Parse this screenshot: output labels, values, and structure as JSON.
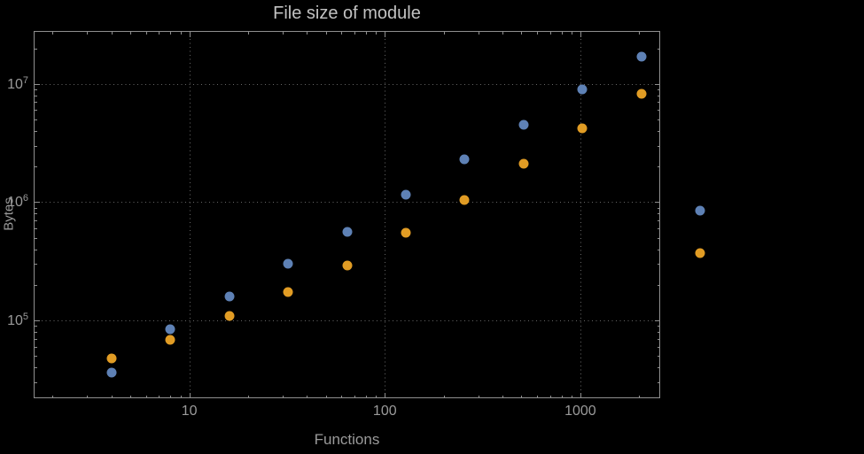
{
  "chart_data": {
    "type": "scatter",
    "title": "File size of module",
    "xlabel": "Functions",
    "ylabel": "Bytes",
    "x_scale": "log",
    "y_scale": "log",
    "grid": "dotted",
    "legend": "none",
    "xlim": [
      1.6,
      2560
    ],
    "ylim": [
      22000,
      28000000
    ],
    "x_ticks": [
      10,
      100,
      1000
    ],
    "x_tick_labels": [
      "10",
      "100",
      "1000"
    ],
    "y_ticks": [
      100000,
      1000000,
      10000000
    ],
    "y_tick_labels": [
      "10^5",
      "10^6",
      "10^7"
    ],
    "x": [
      4,
      8,
      16,
      32,
      64,
      128,
      256,
      512,
      1024,
      2048,
      4096
    ],
    "series": [
      {
        "name": "series-1",
        "color": "#5e81b5",
        "values": [
          36000,
          85000,
          160000,
          300000,
          560000,
          1150000,
          2300000,
          4500000,
          9000000,
          17000000,
          850000
        ]
      },
      {
        "name": "series-2",
        "color": "#e19c24",
        "values": [
          48000,
          68000,
          110000,
          175000,
          290000,
          550000,
          1050000,
          2100000,
          4200000,
          8300000,
          370000
        ]
      }
    ],
    "colors": {
      "background": "#000000",
      "frame": "#8f8f8f",
      "grid": "#676767",
      "labels": "#9a9a9a",
      "title": "#c2c2c2",
      "series1": "#5e81b5",
      "series2": "#e19c24"
    }
  }
}
